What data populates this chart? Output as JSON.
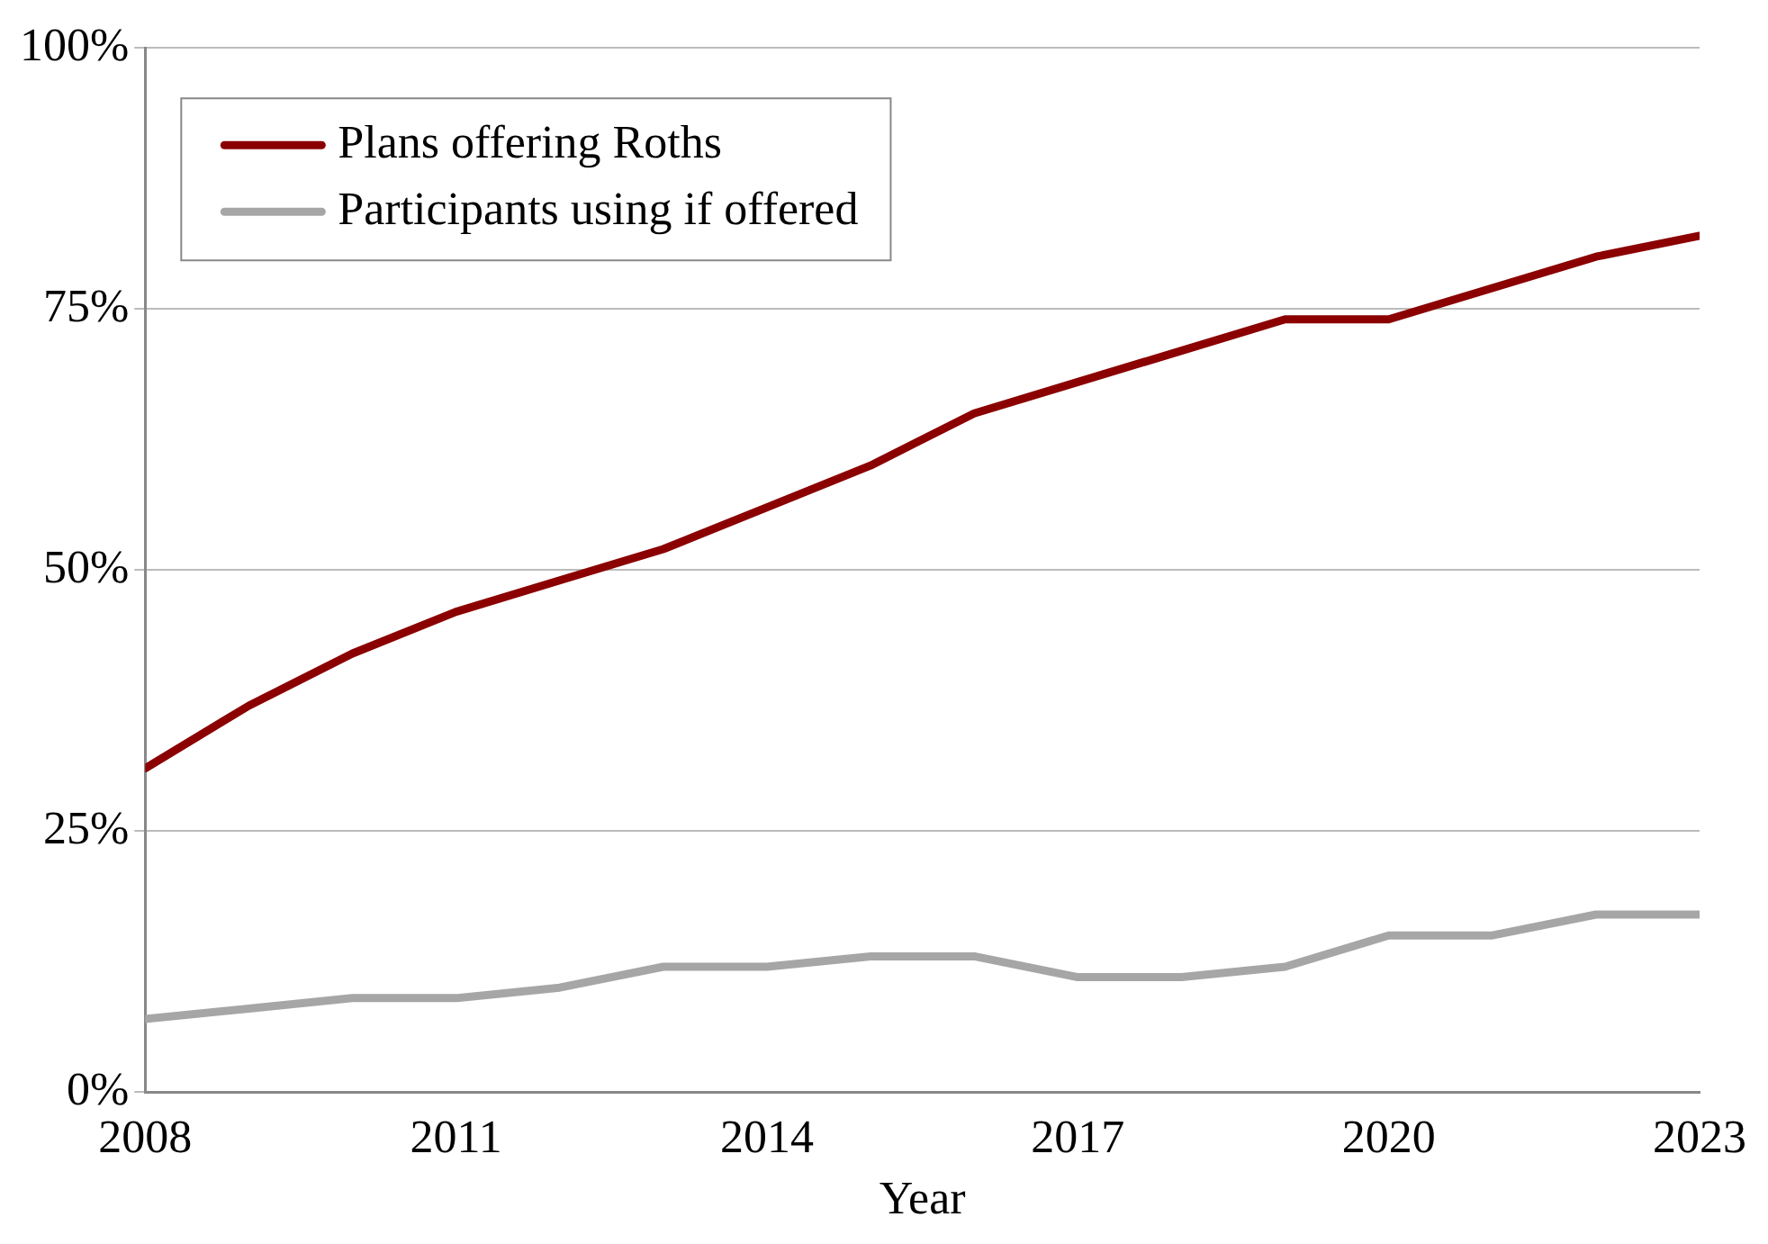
{
  "chart_data": {
    "type": "line",
    "xlabel": "Year",
    "x": [
      2008,
      2009,
      2010,
      2011,
      2012,
      2013,
      2014,
      2015,
      2016,
      2017,
      2018,
      2019,
      2020,
      2021,
      2022,
      2023
    ],
    "series": [
      {
        "name": "Plans offering Roths",
        "color": "#8b0000",
        "values": [
          31,
          37,
          42,
          46,
          49,
          52,
          56,
          60,
          65,
          68,
          71,
          74,
          74,
          77,
          80,
          82
        ]
      },
      {
        "name": "Participants using if offered",
        "color": "#a6a6a6",
        "values": [
          7,
          8,
          9,
          9,
          10,
          12,
          12,
          13,
          13,
          11,
          11,
          12,
          15,
          15,
          17,
          17
        ]
      }
    ],
    "xlim": [
      2008,
      2023
    ],
    "xticks": [
      2008,
      2011,
      2014,
      2017,
      2020,
      2023
    ],
    "ylim": [
      0,
      100
    ],
    "yticks": [
      {
        "value": 0,
        "label": "0%"
      },
      {
        "value": 25,
        "label": "25%"
      },
      {
        "value": 50,
        "label": "50%"
      },
      {
        "value": 75,
        "label": "75%"
      },
      {
        "value": 100,
        "label": "100%"
      }
    ],
    "grid": "y",
    "legend": "top left",
    "marker": "none",
    "line_style": "solid"
  }
}
